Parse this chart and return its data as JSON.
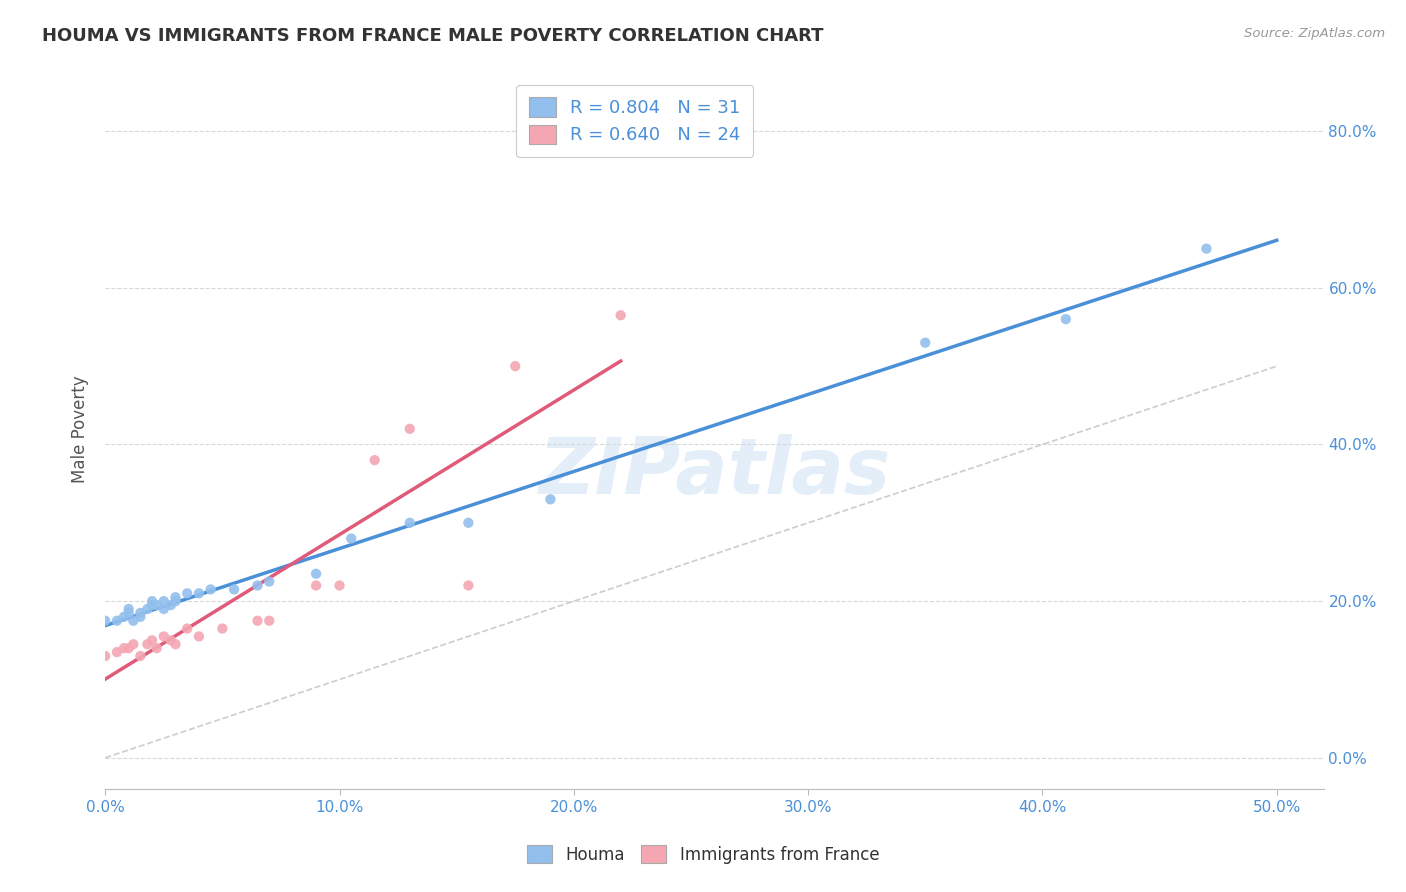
{
  "title": "HOUMA VS IMMIGRANTS FROM FRANCE MALE POVERTY CORRELATION CHART",
  "source_text": "Source: ZipAtlas.com",
  "xlim": [
    0.0,
    0.52
  ],
  "ylim": [
    -0.04,
    0.88
  ],
  "houma_R": 0.804,
  "houma_N": 31,
  "france_R": 0.64,
  "france_N": 24,
  "houma_color": "#92bfed",
  "france_color": "#f4a7b3",
  "houma_line_color": "#4a90d9",
  "france_line_color": "#e05a7a",
  "diagonal_color": "#c0c0c0",
  "watermark_text": "ZIPatlas",
  "houma_points": [
    [
      0.0,
      0.175
    ],
    [
      0.005,
      0.175
    ],
    [
      0.008,
      0.18
    ],
    [
      0.01,
      0.185
    ],
    [
      0.01,
      0.19
    ],
    [
      0.012,
      0.175
    ],
    [
      0.015,
      0.18
    ],
    [
      0.015,
      0.185
    ],
    [
      0.018,
      0.19
    ],
    [
      0.02,
      0.195
    ],
    [
      0.02,
      0.2
    ],
    [
      0.022,
      0.195
    ],
    [
      0.025,
      0.19
    ],
    [
      0.025,
      0.2
    ],
    [
      0.028,
      0.195
    ],
    [
      0.03,
      0.2
    ],
    [
      0.03,
      0.205
    ],
    [
      0.035,
      0.21
    ],
    [
      0.04,
      0.21
    ],
    [
      0.045,
      0.215
    ],
    [
      0.055,
      0.215
    ],
    [
      0.065,
      0.22
    ],
    [
      0.07,
      0.225
    ],
    [
      0.09,
      0.235
    ],
    [
      0.105,
      0.28
    ],
    [
      0.13,
      0.3
    ],
    [
      0.155,
      0.3
    ],
    [
      0.19,
      0.33
    ],
    [
      0.35,
      0.53
    ],
    [
      0.41,
      0.56
    ],
    [
      0.47,
      0.65
    ]
  ],
  "france_points": [
    [
      0.0,
      0.13
    ],
    [
      0.005,
      0.135
    ],
    [
      0.008,
      0.14
    ],
    [
      0.01,
      0.14
    ],
    [
      0.012,
      0.145
    ],
    [
      0.015,
      0.13
    ],
    [
      0.018,
      0.145
    ],
    [
      0.02,
      0.15
    ],
    [
      0.022,
      0.14
    ],
    [
      0.025,
      0.155
    ],
    [
      0.028,
      0.15
    ],
    [
      0.03,
      0.145
    ],
    [
      0.035,
      0.165
    ],
    [
      0.04,
      0.155
    ],
    [
      0.05,
      0.165
    ],
    [
      0.065,
      0.175
    ],
    [
      0.07,
      0.175
    ],
    [
      0.09,
      0.22
    ],
    [
      0.1,
      0.22
    ],
    [
      0.115,
      0.38
    ],
    [
      0.13,
      0.42
    ],
    [
      0.155,
      0.22
    ],
    [
      0.175,
      0.5
    ],
    [
      0.22,
      0.565
    ]
  ],
  "background_color": "#ffffff",
  "grid_color": "#d8d8d8",
  "title_color": "#333333",
  "axis_label_color": "#555555",
  "tick_color": "#4a90d9",
  "yticks": [
    0.0,
    0.2,
    0.4,
    0.6,
    0.8
  ],
  "xticks": [
    0.0,
    0.1,
    0.2,
    0.3,
    0.4,
    0.5
  ]
}
